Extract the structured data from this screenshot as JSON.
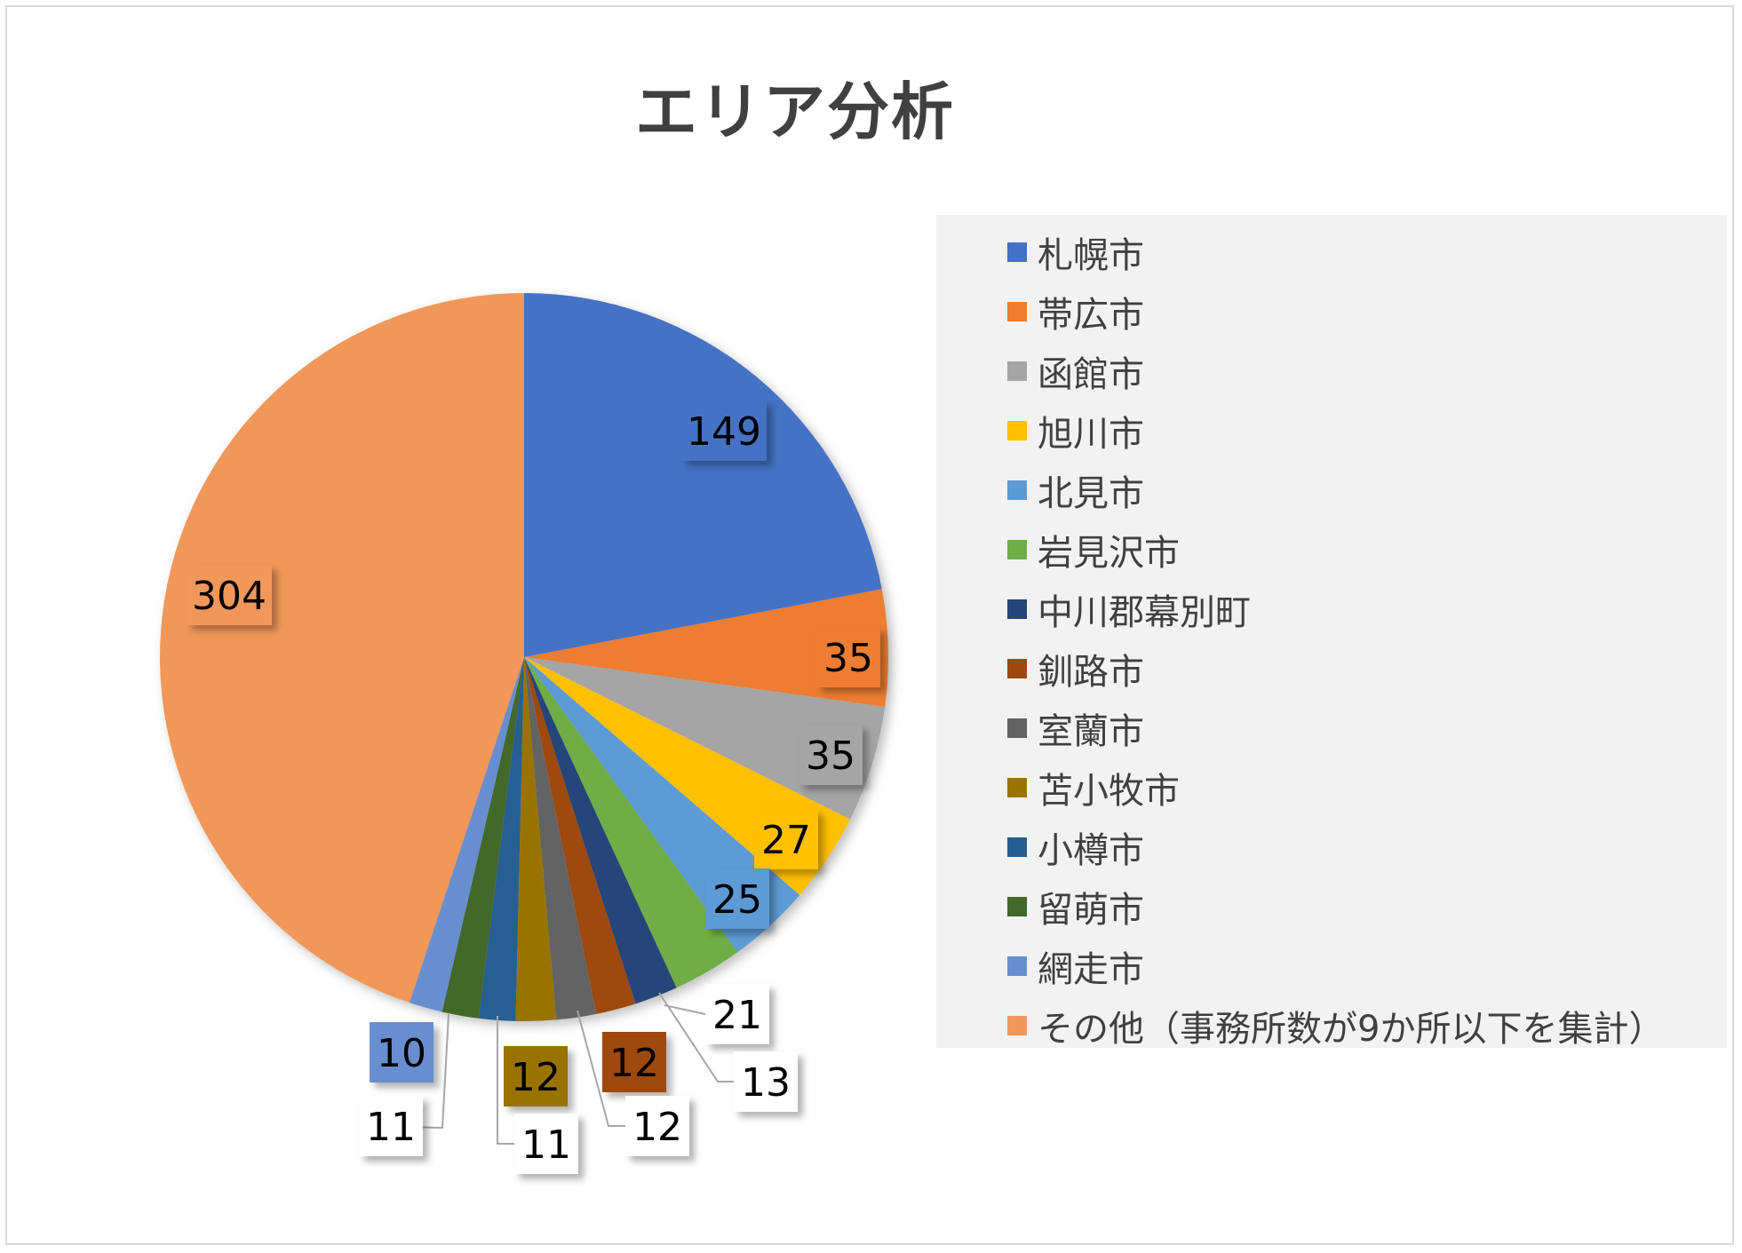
{
  "chart_data": {
    "type": "pie",
    "title": "エリア分析",
    "categories": [
      "札幌市",
      "帯広市",
      "函館市",
      "旭川市",
      "北見市",
      "岩見沢市",
      "中川郡幕別町",
      "釧路市",
      "室蘭市",
      "苫小牧市",
      "小樽市",
      "留萌市",
      "網走市",
      "その他（事務所数が9か所以下を集計）"
    ],
    "values": [
      149,
      35,
      35,
      27,
      25,
      21,
      13,
      12,
      12,
      12,
      11,
      11,
      10,
      304
    ],
    "colors": [
      "#4472C4",
      "#ED7D31",
      "#A5A5A5",
      "#FFC000",
      "#5B9BD5",
      "#70AD47",
      "#264478",
      "#9E480E",
      "#636363",
      "#997300",
      "#255E91",
      "#43682B",
      "#698ED0",
      "#F1975A"
    ],
    "legend_position": "right",
    "start_angle_degrees": 0,
    "direction": "clockwise"
  }
}
